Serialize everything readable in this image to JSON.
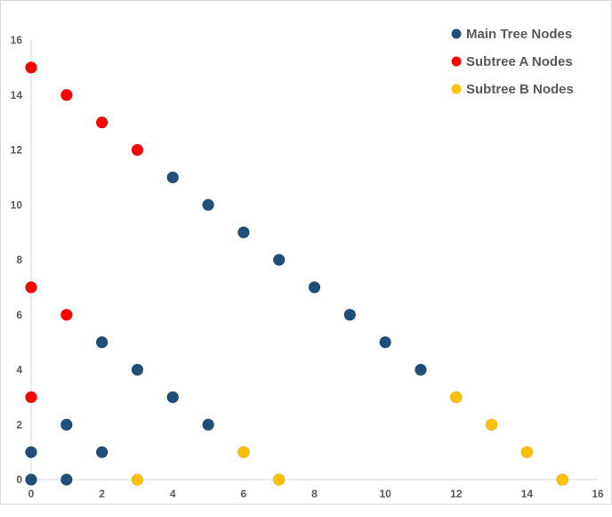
{
  "chart_data": {
    "type": "scatter",
    "title": "",
    "xlabel": "",
    "ylabel": "",
    "xlim": [
      0,
      16
    ],
    "ylim": [
      0,
      16
    ],
    "xticks": [
      "0",
      "2",
      "4",
      "6",
      "8",
      "10",
      "12",
      "14",
      "16"
    ],
    "yticks": [
      "0",
      "2",
      "4",
      "6",
      "8",
      "10",
      "12",
      "14",
      "16"
    ],
    "grid": false,
    "legend_position": "top-right",
    "series": [
      {
        "name": "Main Tree Nodes",
        "color": "#1f4e79",
        "points": [
          [
            0,
            0
          ],
          [
            0,
            1
          ],
          [
            1,
            0
          ],
          [
            1,
            2
          ],
          [
            2,
            1
          ],
          [
            2,
            5
          ],
          [
            3,
            4
          ],
          [
            4,
            3
          ],
          [
            5,
            2
          ],
          [
            4,
            11
          ],
          [
            5,
            10
          ],
          [
            6,
            9
          ],
          [
            7,
            8
          ],
          [
            8,
            7
          ],
          [
            9,
            6
          ],
          [
            10,
            5
          ],
          [
            11,
            4
          ]
        ]
      },
      {
        "name": "Subtree A Nodes",
        "color": "#ff0000",
        "points": [
          [
            0,
            15
          ],
          [
            1,
            14
          ],
          [
            2,
            13
          ],
          [
            3,
            12
          ],
          [
            0,
            7
          ],
          [
            1,
            6
          ],
          [
            0,
            3
          ]
        ]
      },
      {
        "name": "Subtree B Nodes",
        "color": "#ffc000",
        "points": [
          [
            12,
            3
          ],
          [
            13,
            2
          ],
          [
            14,
            1
          ],
          [
            15,
            0
          ],
          [
            3,
            0
          ],
          [
            6,
            1
          ],
          [
            7,
            0
          ]
        ]
      }
    ]
  }
}
